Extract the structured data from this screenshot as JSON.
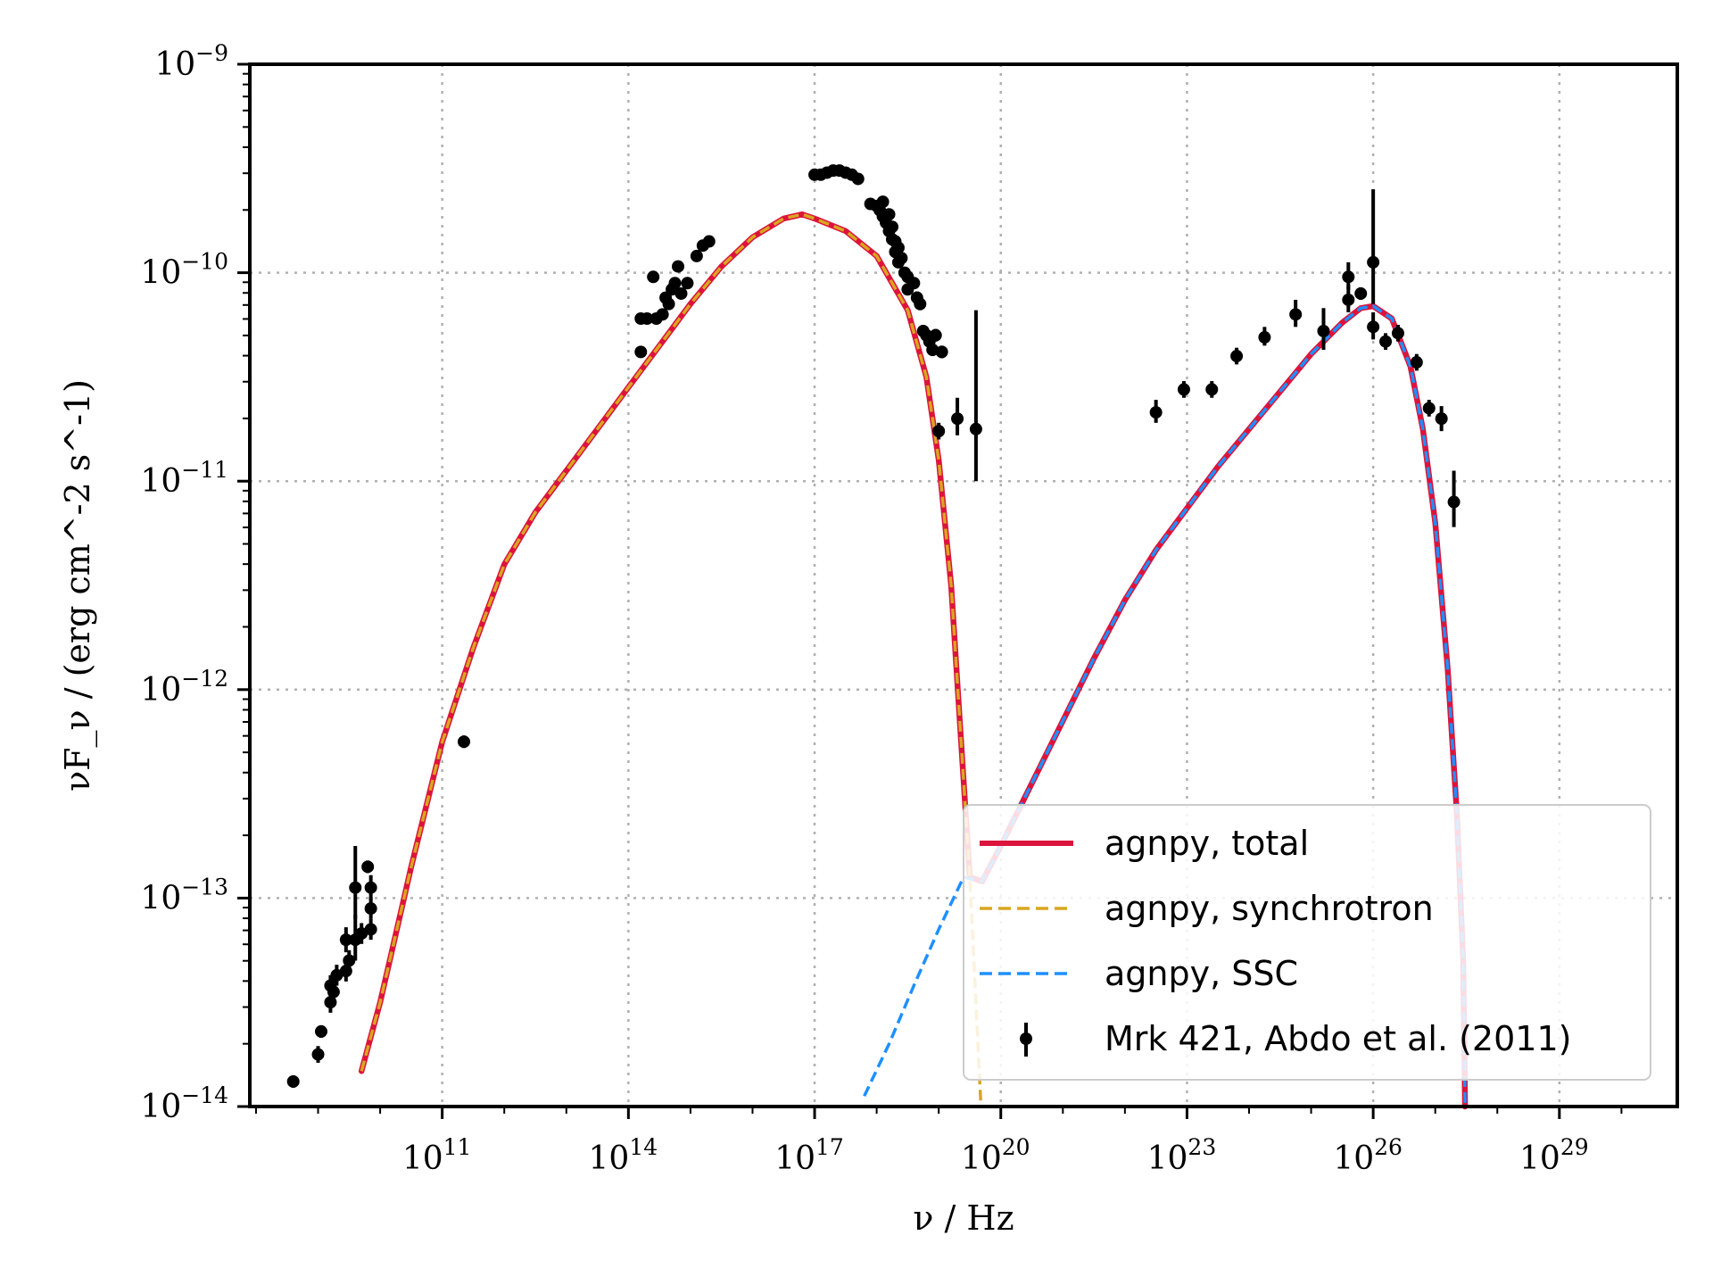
{
  "chart_data": {
    "type": "line",
    "title": "",
    "xlabel": "ν / Hz",
    "ylabel": "νF_ν / (erg cm^-2 s^-1)",
    "xscale": "log",
    "yscale": "log",
    "xlim_log10": [
      7.9,
      30.9
    ],
    "ylim_log10": [
      -14,
      -9
    ],
    "grid": true,
    "legend_position": "lower-right",
    "x_ticks": [
      {
        "base": "10",
        "exp": "11",
        "v": 11
      },
      {
        "base": "10",
        "exp": "14",
        "v": 14
      },
      {
        "base": "10",
        "exp": "17",
        "v": 17
      },
      {
        "base": "10",
        "exp": "20",
        "v": 20
      },
      {
        "base": "10",
        "exp": "23",
        "v": 23
      },
      {
        "base": "10",
        "exp": "26",
        "v": 26
      },
      {
        "base": "10",
        "exp": "29",
        "v": 29
      }
    ],
    "y_ticks": [
      {
        "base": "10",
        "exp": "−9",
        "v": -9
      },
      {
        "base": "10",
        "exp": "−10",
        "v": -10
      },
      {
        "base": "10",
        "exp": "−11",
        "v": -11
      },
      {
        "base": "10",
        "exp": "−12",
        "v": -12
      },
      {
        "base": "10",
        "exp": "−13",
        "v": -13
      },
      {
        "base": "10",
        "exp": "−14",
        "v": -14
      }
    ],
    "colors": {
      "total": "#dc143c",
      "synchrotron": "#daa520",
      "ssc": "#1e90ff",
      "data": "#000000"
    },
    "series": [
      {
        "name": "agnpy, total",
        "style": "solid",
        "points_log10": [
          [
            9.7,
            -13.83
          ],
          [
            10.0,
            -13.5
          ],
          [
            10.5,
            -12.85
          ],
          [
            11.0,
            -12.25
          ],
          [
            11.5,
            -11.8
          ],
          [
            12.0,
            -11.4
          ],
          [
            12.5,
            -11.15
          ],
          [
            13.0,
            -10.95
          ],
          [
            13.5,
            -10.75
          ],
          [
            14.0,
            -10.55
          ],
          [
            14.5,
            -10.35
          ],
          [
            15.0,
            -10.15
          ],
          [
            15.5,
            -9.97
          ],
          [
            16.0,
            -9.83
          ],
          [
            16.5,
            -9.74
          ],
          [
            16.8,
            -9.72
          ],
          [
            17.0,
            -9.74
          ],
          [
            17.5,
            -9.8
          ],
          [
            18.0,
            -9.92
          ],
          [
            18.5,
            -10.18
          ],
          [
            18.8,
            -10.5
          ],
          [
            19.0,
            -10.9
          ],
          [
            19.2,
            -11.5
          ],
          [
            19.35,
            -12.2
          ],
          [
            19.5,
            -12.9
          ],
          [
            19.7,
            -12.92
          ],
          [
            20.0,
            -12.75
          ],
          [
            20.5,
            -12.45
          ],
          [
            21.0,
            -12.15
          ],
          [
            21.5,
            -11.85
          ],
          [
            22.0,
            -11.57
          ],
          [
            22.5,
            -11.33
          ],
          [
            23.0,
            -11.13
          ],
          [
            23.5,
            -10.93
          ],
          [
            24.0,
            -10.75
          ],
          [
            24.5,
            -10.57
          ],
          [
            25.0,
            -10.39
          ],
          [
            25.5,
            -10.24
          ],
          [
            25.8,
            -10.17
          ],
          [
            26.0,
            -10.16
          ],
          [
            26.3,
            -10.22
          ],
          [
            26.6,
            -10.45
          ],
          [
            26.8,
            -10.75
          ],
          [
            27.0,
            -11.2
          ],
          [
            27.2,
            -11.9
          ],
          [
            27.35,
            -12.6
          ],
          [
            27.45,
            -13.3
          ],
          [
            27.48,
            -14.0
          ]
        ]
      },
      {
        "name": "agnpy, synchrotron",
        "style": "dashed",
        "points_log10": [
          [
            9.7,
            -13.83
          ],
          [
            10.0,
            -13.5
          ],
          [
            10.5,
            -12.85
          ],
          [
            11.0,
            -12.25
          ],
          [
            11.5,
            -11.8
          ],
          [
            12.0,
            -11.4
          ],
          [
            12.5,
            -11.15
          ],
          [
            13.0,
            -10.95
          ],
          [
            13.5,
            -10.75
          ],
          [
            14.0,
            -10.55
          ],
          [
            14.5,
            -10.35
          ],
          [
            15.0,
            -10.15
          ],
          [
            15.5,
            -9.97
          ],
          [
            16.0,
            -9.83
          ],
          [
            16.5,
            -9.74
          ],
          [
            16.8,
            -9.72
          ],
          [
            17.0,
            -9.74
          ],
          [
            17.5,
            -9.8
          ],
          [
            18.0,
            -9.92
          ],
          [
            18.5,
            -10.18
          ],
          [
            18.8,
            -10.5
          ],
          [
            19.0,
            -10.9
          ],
          [
            19.2,
            -11.5
          ],
          [
            19.35,
            -12.2
          ],
          [
            19.5,
            -12.9
          ],
          [
            19.6,
            -13.5
          ],
          [
            19.68,
            -14.0
          ]
        ]
      },
      {
        "name": "agnpy, SSC",
        "style": "dashed",
        "points_log10": [
          [
            17.8,
            -13.95
          ],
          [
            18.2,
            -13.7
          ],
          [
            18.6,
            -13.42
          ],
          [
            19.0,
            -13.15
          ],
          [
            19.4,
            -12.9
          ],
          [
            19.7,
            -12.92
          ],
          [
            20.0,
            -12.75
          ],
          [
            20.5,
            -12.45
          ],
          [
            21.0,
            -12.15
          ],
          [
            21.5,
            -11.85
          ],
          [
            22.0,
            -11.57
          ],
          [
            22.5,
            -11.33
          ],
          [
            23.0,
            -11.13
          ],
          [
            23.5,
            -10.93
          ],
          [
            24.0,
            -10.75
          ],
          [
            24.5,
            -10.57
          ],
          [
            25.0,
            -10.39
          ],
          [
            25.5,
            -10.24
          ],
          [
            25.8,
            -10.17
          ],
          [
            26.0,
            -10.16
          ],
          [
            26.3,
            -10.22
          ],
          [
            26.6,
            -10.45
          ],
          [
            26.8,
            -10.75
          ],
          [
            27.0,
            -11.2
          ],
          [
            27.2,
            -11.9
          ],
          [
            27.35,
            -12.6
          ],
          [
            27.45,
            -13.3
          ],
          [
            27.48,
            -14.0
          ]
        ]
      },
      {
        "name": "Mrk 421, Abdo et al. (2011)",
        "style": "errorbar",
        "points_log10": [
          [
            8.6,
            -13.88,
            0.03,
            0.03
          ],
          [
            9.0,
            -13.75,
            0.04,
            0.04
          ],
          [
            9.05,
            -13.64,
            0.03,
            0.03
          ],
          [
            9.2,
            -13.5,
            0.05,
            0.05
          ],
          [
            9.25,
            -13.45,
            0.06,
            0.06
          ],
          [
            9.2,
            -13.42,
            0.05,
            0.05
          ],
          [
            9.3,
            -13.37,
            0.05,
            0.05
          ],
          [
            9.45,
            -13.35,
            0.05,
            0.05
          ],
          [
            9.5,
            -13.3,
            0.05,
            0.05
          ],
          [
            9.45,
            -13.2,
            0.06,
            0.06
          ],
          [
            9.6,
            -13.2,
            0.1,
            0.12
          ],
          [
            9.6,
            -12.95,
            0.15,
            0.2
          ],
          [
            9.8,
            -12.85,
            0.03,
            0.03
          ],
          [
            9.85,
            -12.95,
            0.06,
            0.06
          ],
          [
            9.85,
            -13.05,
            0.05,
            0.05
          ],
          [
            9.85,
            -13.15,
            0.05,
            0.05
          ],
          [
            9.7,
            -13.17,
            0.05,
            0.05
          ],
          [
            11.35,
            -12.25,
            0.03,
            0.03
          ],
          [
            14.2,
            -10.38,
            0.02,
            0.02
          ],
          [
            14.2,
            -10.22,
            0.02,
            0.02
          ],
          [
            14.3,
            -10.22,
            0.02,
            0.02
          ],
          [
            14.4,
            -10.02,
            0.02,
            0.02
          ],
          [
            14.45,
            -10.22,
            0.02,
            0.02
          ],
          [
            14.55,
            -10.2,
            0.02,
            0.02
          ],
          [
            14.6,
            -10.12,
            0.02,
            0.02
          ],
          [
            14.65,
            -10.15,
            0.02,
            0.02
          ],
          [
            14.7,
            -10.08,
            0.02,
            0.02
          ],
          [
            14.75,
            -10.05,
            0.02,
            0.02
          ],
          [
            14.8,
            -9.97,
            0.02,
            0.02
          ],
          [
            14.85,
            -10.1,
            0.02,
            0.02
          ],
          [
            14.95,
            -10.05,
            0.02,
            0.02
          ],
          [
            15.1,
            -9.92,
            0.02,
            0.02
          ],
          [
            15.2,
            -9.87,
            0.02,
            0.02
          ],
          [
            15.3,
            -9.85,
            0.02,
            0.02
          ],
          [
            17.0,
            -9.53,
            0.02,
            0.02
          ],
          [
            17.1,
            -9.53,
            0.02,
            0.02
          ],
          [
            17.2,
            -9.52,
            0.02,
            0.02
          ],
          [
            17.3,
            -9.51,
            0.02,
            0.02
          ],
          [
            17.4,
            -9.51,
            0.02,
            0.02
          ],
          [
            17.5,
            -9.52,
            0.02,
            0.02
          ],
          [
            17.6,
            -9.53,
            0.02,
            0.02
          ],
          [
            17.7,
            -9.55,
            0.02,
            0.02
          ],
          [
            17.9,
            -9.67,
            0.02,
            0.02
          ],
          [
            18.0,
            -9.68,
            0.02,
            0.02
          ],
          [
            18.05,
            -9.7,
            0.02,
            0.02
          ],
          [
            18.1,
            -9.66,
            0.02,
            0.02
          ],
          [
            18.1,
            -9.73,
            0.02,
            0.02
          ],
          [
            18.15,
            -9.76,
            0.02,
            0.02
          ],
          [
            18.2,
            -9.72,
            0.02,
            0.02
          ],
          [
            18.2,
            -9.8,
            0.02,
            0.02
          ],
          [
            18.25,
            -9.84,
            0.02,
            0.02
          ],
          [
            18.25,
            -9.78,
            0.02,
            0.02
          ],
          [
            18.3,
            -9.85,
            0.02,
            0.02
          ],
          [
            18.3,
            -9.9,
            0.02,
            0.02
          ],
          [
            18.35,
            -9.88,
            0.02,
            0.02
          ],
          [
            18.35,
            -9.95,
            0.02,
            0.02
          ],
          [
            18.4,
            -9.93,
            0.02,
            0.02
          ],
          [
            18.45,
            -10.0,
            0.02,
            0.02
          ],
          [
            18.5,
            -10.02,
            0.02,
            0.02
          ],
          [
            18.5,
            -10.08,
            0.02,
            0.02
          ],
          [
            18.6,
            -10.05,
            0.02,
            0.02
          ],
          [
            18.65,
            -10.12,
            0.03,
            0.03
          ],
          [
            18.7,
            -10.15,
            0.03,
            0.03
          ],
          [
            18.75,
            -10.28,
            0.03,
            0.03
          ],
          [
            18.8,
            -10.3,
            0.03,
            0.03
          ],
          [
            18.85,
            -10.33,
            0.03,
            0.03
          ],
          [
            18.9,
            -10.37,
            0.03,
            0.03
          ],
          [
            18.95,
            -10.3,
            0.03,
            0.03
          ],
          [
            19.05,
            -10.38,
            0.03,
            0.03
          ],
          [
            19.0,
            -10.76,
            0.04,
            0.04
          ],
          [
            19.3,
            -10.7,
            0.08,
            0.1
          ],
          [
            19.6,
            -10.75,
            0.25,
            0.57
          ],
          [
            22.5,
            -10.67,
            0.05,
            0.06
          ],
          [
            22.95,
            -10.56,
            0.04,
            0.04
          ],
          [
            23.4,
            -10.56,
            0.04,
            0.04
          ],
          [
            23.8,
            -10.4,
            0.04,
            0.04
          ],
          [
            24.25,
            -10.31,
            0.04,
            0.05
          ],
          [
            24.75,
            -10.2,
            0.06,
            0.07
          ],
          [
            25.2,
            -10.28,
            0.09,
            0.11
          ],
          [
            25.6,
            -10.02,
            0.06,
            0.07
          ],
          [
            25.6,
            -10.13,
            0.06,
            0.07
          ],
          [
            25.8,
            -10.1,
            0.03,
            0.03
          ],
          [
            26.0,
            -9.95,
            0.2,
            0.35
          ],
          [
            26.0,
            -10.26,
            0.06,
            0.07
          ],
          [
            26.2,
            -10.33,
            0.04,
            0.04
          ],
          [
            26.4,
            -10.29,
            0.04,
            0.04
          ],
          [
            26.7,
            -10.43,
            0.04,
            0.04
          ],
          [
            26.9,
            -10.65,
            0.04,
            0.04
          ],
          [
            27.1,
            -10.7,
            0.06,
            0.06
          ],
          [
            27.3,
            -11.1,
            0.12,
            0.15
          ]
        ]
      }
    ]
  }
}
